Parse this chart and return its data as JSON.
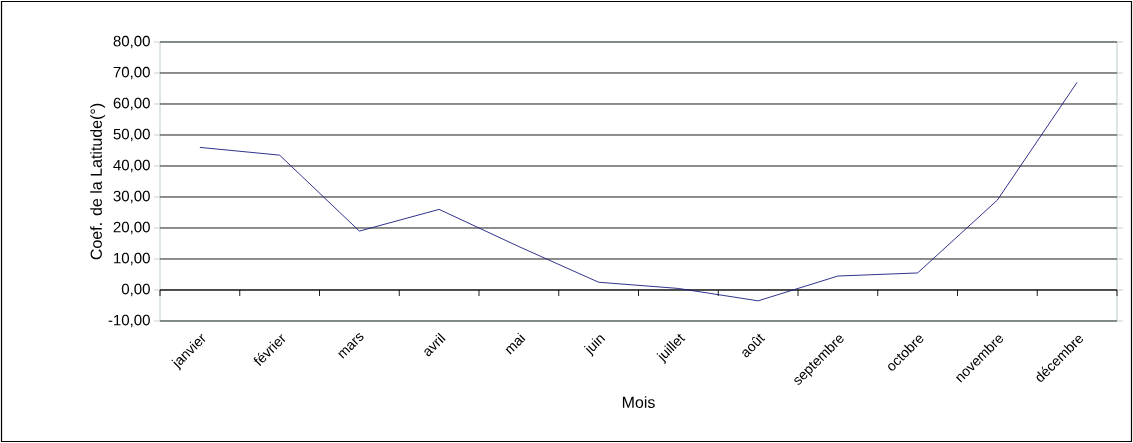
{
  "chart_data": {
    "type": "line",
    "xlabel": "Mois",
    "ylabel": "Coef. de la Latitude(°)",
    "categories": [
      "janvier",
      "février",
      "mars",
      "avril",
      "mai",
      "juin",
      "juillet",
      "août",
      "septembre",
      "octobre",
      "novembre",
      "décembre"
    ],
    "series": [
      {
        "color": "#1c1c80",
        "values": [
          46,
          43.5,
          19,
          26,
          14,
          2.5,
          0.5,
          -3.5,
          4.5,
          5.5,
          29,
          67
        ]
      }
    ],
    "ylim": [
      -10,
      80
    ],
    "yticks": [
      {
        "value": -10,
        "label": "-10,00"
      },
      {
        "value": 0,
        "label": "0,00"
      },
      {
        "value": 10,
        "label": "10,00"
      },
      {
        "value": 20,
        "label": "20,00"
      },
      {
        "value": 30,
        "label": "30,00"
      },
      {
        "value": 40,
        "label": "40,00"
      },
      {
        "value": 50,
        "label": "50,00"
      },
      {
        "value": 60,
        "label": "60,00"
      },
      {
        "value": 70,
        "label": "70,00"
      },
      {
        "value": 80,
        "label": "80,00"
      }
    ],
    "grid": "y",
    "marker": "none",
    "line_style": "solid"
  }
}
